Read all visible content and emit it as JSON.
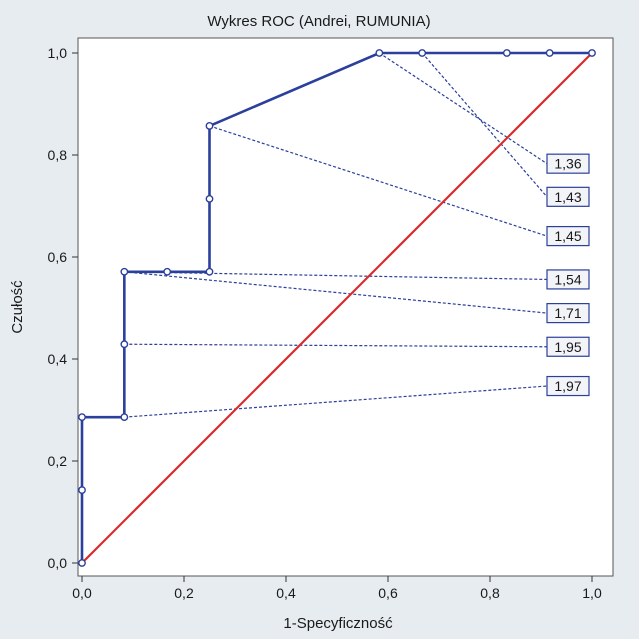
{
  "chart_data": {
    "type": "line",
    "title": "Wykres ROC (Andrei, RUMUNIA)",
    "xlabel": "1-Specyficzność",
    "ylabel": "Czułość",
    "xlim": [
      0,
      1
    ],
    "ylim": [
      0,
      1
    ],
    "xticks": [
      "0,0",
      "0,2",
      "0,4",
      "0,6",
      "0,8",
      "1,0"
    ],
    "yticks": [
      "0,0",
      "0,2",
      "0,4",
      "0,6",
      "0,8",
      "1,0"
    ],
    "grid": false,
    "colors": {
      "roc": "#2b3f9c",
      "diagonal": "#d92b2b",
      "label_bg": "#f2f4f8"
    },
    "series": [
      {
        "kind": "roc",
        "x": [
          0,
          0,
          0,
          0.083,
          0.083,
          0.083,
          0.167,
          0.25,
          0.25,
          0.25,
          0.583,
          0.667,
          0.833,
          0.917,
          1.0
        ],
        "y": [
          0,
          0.143,
          0.286,
          0.286,
          0.429,
          0.571,
          0.571,
          0.571,
          0.714,
          0.857,
          1.0,
          1.0,
          1.0,
          1.0,
          1.0
        ]
      },
      {
        "kind": "diagonal",
        "x": [
          0,
          1
        ],
        "y": [
          0,
          1
        ]
      }
    ],
    "cutoff_labels": [
      {
        "text": "1,36",
        "x": 0.583,
        "y": 1.0,
        "label_y": 0.783
      },
      {
        "text": "1,43",
        "x": 0.667,
        "y": 1.0,
        "label_y": 0.718
      },
      {
        "text": "1,45",
        "x": 0.25,
        "y": 0.857,
        "label_y": 0.641
      },
      {
        "text": "1,54",
        "x": 0.083,
        "y": 0.571,
        "label_y": 0.556
      },
      {
        "text": "1,71",
        "x": 0.083,
        "y": 0.571,
        "label_y": 0.49
      },
      {
        "text": "1,95",
        "x": 0.083,
        "y": 0.429,
        "label_y": 0.424
      },
      {
        "text": "1,97",
        "x": 0.083,
        "y": 0.286,
        "label_y": 0.347
      }
    ]
  }
}
